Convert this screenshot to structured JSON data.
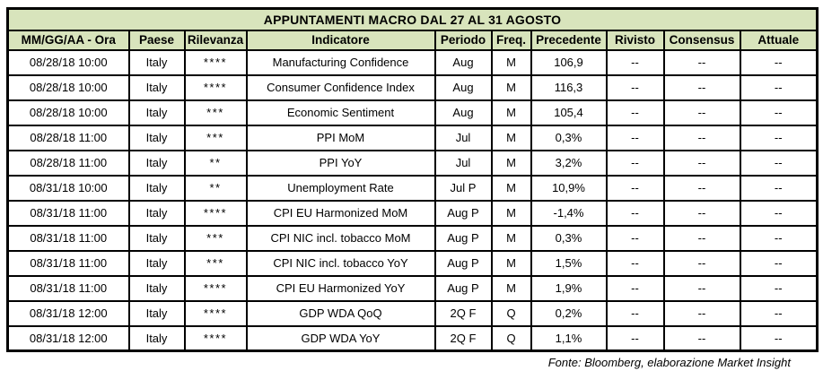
{
  "title": "APPUNTAMENTI MACRO DAL 27 AL 31 AGOSTO",
  "source_note": "Fonte: Bloomberg, elaborazione Market Insight",
  "colors": {
    "header_bg": "#d8e4bc",
    "relevance_star": "#ff0000",
    "border": "#000000"
  },
  "table": {
    "columns": [
      "MM/GG/AA - Ora",
      "Paese",
      "Rilevanza",
      "Indicatore",
      "Periodo",
      "Freq.",
      "Precedente",
      "Rivisto",
      "Consensus",
      "Attuale"
    ],
    "column_keys": [
      "datetime",
      "paese",
      "rilevanza",
      "indicatore",
      "periodo",
      "freq",
      "precedente",
      "rivisto",
      "consensus",
      "attuale"
    ],
    "rows": [
      {
        "datetime": "08/28/18 10:00",
        "paese": "Italy",
        "rilevanza": "****",
        "indicatore": "Manufacturing Confidence",
        "periodo": "Aug",
        "freq": "M",
        "precedente": "106,9",
        "rivisto": "--",
        "consensus": "--",
        "attuale": "--"
      },
      {
        "datetime": "08/28/18 10:00",
        "paese": "Italy",
        "rilevanza": "****",
        "indicatore": "Consumer Confidence Index",
        "periodo": "Aug",
        "freq": "M",
        "precedente": "116,3",
        "rivisto": "--",
        "consensus": "--",
        "attuale": "--"
      },
      {
        "datetime": "08/28/18 10:00",
        "paese": "Italy",
        "rilevanza": "***",
        "indicatore": "Economic Sentiment",
        "periodo": "Aug",
        "freq": "M",
        "precedente": "105,4",
        "rivisto": "--",
        "consensus": "--",
        "attuale": "--"
      },
      {
        "datetime": "08/28/18 11:00",
        "paese": "Italy",
        "rilevanza": "***",
        "indicatore": "PPI MoM",
        "periodo": "Jul",
        "freq": "M",
        "precedente": "0,3%",
        "rivisto": "--",
        "consensus": "--",
        "attuale": "--"
      },
      {
        "datetime": "08/28/18 11:00",
        "paese": "Italy",
        "rilevanza": "**",
        "indicatore": "PPI YoY",
        "periodo": "Jul",
        "freq": "M",
        "precedente": "3,2%",
        "rivisto": "--",
        "consensus": "--",
        "attuale": "--"
      },
      {
        "datetime": "08/31/18 10:00",
        "paese": "Italy",
        "rilevanza": "**",
        "indicatore": "Unemployment Rate",
        "periodo": "Jul P",
        "freq": "M",
        "precedente": "10,9%",
        "rivisto": "--",
        "consensus": "--",
        "attuale": "--"
      },
      {
        "datetime": "08/31/18 11:00",
        "paese": "Italy",
        "rilevanza": "****",
        "indicatore": "CPI EU Harmonized MoM",
        "periodo": "Aug P",
        "freq": "M",
        "precedente": "-1,4%",
        "rivisto": "--",
        "consensus": "--",
        "attuale": "--"
      },
      {
        "datetime": "08/31/18 11:00",
        "paese": "Italy",
        "rilevanza": "***",
        "indicatore": "CPI NIC incl. tobacco MoM",
        "periodo": "Aug P",
        "freq": "M",
        "precedente": "0,3%",
        "rivisto": "--",
        "consensus": "--",
        "attuale": "--"
      },
      {
        "datetime": "08/31/18 11:00",
        "paese": "Italy",
        "rilevanza": "***",
        "indicatore": "CPI NIC incl. tobacco YoY",
        "periodo": "Aug P",
        "freq": "M",
        "precedente": "1,5%",
        "rivisto": "--",
        "consensus": "--",
        "attuale": "--"
      },
      {
        "datetime": "08/31/18 11:00",
        "paese": "Italy",
        "rilevanza": "****",
        "indicatore": "CPI EU Harmonized YoY",
        "periodo": "Aug P",
        "freq": "M",
        "precedente": "1,9%",
        "rivisto": "--",
        "consensus": "--",
        "attuale": "--"
      },
      {
        "datetime": "08/31/18 12:00",
        "paese": "Italy",
        "rilevanza": "****",
        "indicatore": "GDP WDA QoQ",
        "periodo": "2Q F",
        "freq": "Q",
        "precedente": "0,2%",
        "rivisto": "--",
        "consensus": "--",
        "attuale": "--"
      },
      {
        "datetime": "08/31/18 12:00",
        "paese": "Italy",
        "rilevanza": "****",
        "indicatore": "GDP WDA YoY",
        "periodo": "2Q F",
        "freq": "Q",
        "precedente": "1,1%",
        "rivisto": "--",
        "consensus": "--",
        "attuale": "--"
      }
    ]
  }
}
